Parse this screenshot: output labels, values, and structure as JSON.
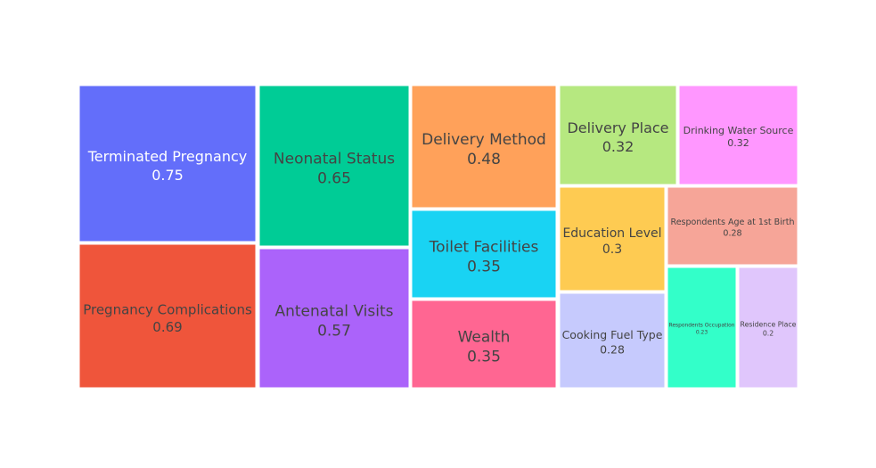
{
  "chart_data": {
    "type": "treemap",
    "title": "",
    "items": [
      {
        "label": "Terminated Pregnancy",
        "value": 0.75,
        "color": "#636EFA",
        "text_color": "#ffffff"
      },
      {
        "label": "Pregnancy Complications",
        "value": 0.69,
        "color": "#EF553B",
        "text_color": "#444444"
      },
      {
        "label": "Neonatal Status",
        "value": 0.65,
        "color": "#00CC96",
        "text_color": "#444444"
      },
      {
        "label": "Antenatal Visits",
        "value": 0.57,
        "color": "#AB63FA",
        "text_color": "#444444"
      },
      {
        "label": "Delivery Method",
        "value": 0.48,
        "color": "#FFA15A",
        "text_color": "#444444"
      },
      {
        "label": "Toilet Facilities",
        "value": 0.35,
        "color": "#19D3F3",
        "text_color": "#444444"
      },
      {
        "label": "Wealth",
        "value": 0.35,
        "color": "#FF6692",
        "text_color": "#444444"
      },
      {
        "label": "Delivery Place",
        "value": 0.32,
        "color": "#B6E880",
        "text_color": "#444444"
      },
      {
        "label": "Drinking Water Source",
        "value": 0.32,
        "color": "#FF97FF",
        "text_color": "#444444"
      },
      {
        "label": "Education Level",
        "value": 0.3,
        "color": "#FECB52",
        "text_color": "#444444"
      },
      {
        "label": "Respondents Age at 1st Birth",
        "value": 0.28,
        "color": "#F6A598",
        "text_color": "#444444"
      },
      {
        "label": "Cooking Fuel Type",
        "value": 0.28,
        "color": "#C6CAFD",
        "text_color": "#444444"
      },
      {
        "label": "Respondents Occupation",
        "value": 0.23,
        "color": "#33FFC9",
        "text_color": "#444444"
      },
      {
        "label": "Residence Place",
        "value": 0.2,
        "color": "#E0C6FC",
        "text_color": "#444444"
      }
    ]
  }
}
